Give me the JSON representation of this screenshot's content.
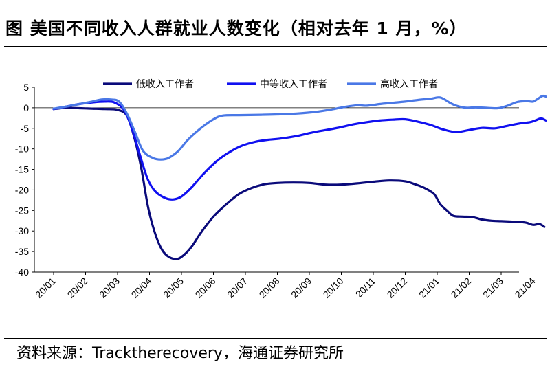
{
  "title": "图  美国不同收入人群就业人数变化（相对去年 1 月，%）",
  "source": "资料来源：Tracktherecovery，海通证券研究所",
  "chart_data": {
    "type": "line",
    "title": "美国不同收入人群就业人数变化（相对去年 1 月，%）",
    "ylim": [
      -40,
      5
    ],
    "yticks": [
      5,
      0,
      -5,
      -10,
      -15,
      -20,
      -25,
      -30,
      -35,
      -40
    ],
    "xlim": [
      0,
      15.4
    ],
    "x_tick_labels": [
      "20/01",
      "20/02",
      "20/03",
      "20/04",
      "20/05",
      "20/06",
      "20/07",
      "20/08",
      "20/09",
      "20/10",
      "20/11",
      "20/12",
      "21/01",
      "21/02",
      "21/03",
      "21/04"
    ],
    "legend_position": "top",
    "series": [
      {
        "name": "低收入工作者",
        "color": "#0a0a7a",
        "points": [
          [
            0,
            -0.3
          ],
          [
            0.4,
            0
          ],
          [
            0.8,
            -0.1
          ],
          [
            1.2,
            -0.2
          ],
          [
            1.6,
            -0.3
          ],
          [
            2.0,
            -0.5
          ],
          [
            2.3,
            -2
          ],
          [
            2.55,
            -8
          ],
          [
            2.75,
            -15
          ],
          [
            2.95,
            -24
          ],
          [
            3.15,
            -30
          ],
          [
            3.35,
            -34
          ],
          [
            3.55,
            -36
          ],
          [
            3.8,
            -36.8
          ],
          [
            4.0,
            -36.3
          ],
          [
            4.3,
            -34
          ],
          [
            4.6,
            -30.5
          ],
          [
            5.0,
            -26.5
          ],
          [
            5.4,
            -23.5
          ],
          [
            5.8,
            -21
          ],
          [
            6.2,
            -19.5
          ],
          [
            6.6,
            -18.6
          ],
          [
            7.0,
            -18.3
          ],
          [
            7.5,
            -18.2
          ],
          [
            8.0,
            -18.3
          ],
          [
            8.5,
            -18.7
          ],
          [
            9.0,
            -18.7
          ],
          [
            9.5,
            -18.4
          ],
          [
            10.0,
            -18.0
          ],
          [
            10.5,
            -17.7
          ],
          [
            11.0,
            -17.9
          ],
          [
            11.3,
            -18.6
          ],
          [
            11.6,
            -19.5
          ],
          [
            11.9,
            -21
          ],
          [
            12.1,
            -23.5
          ],
          [
            12.3,
            -25
          ],
          [
            12.5,
            -26.3
          ],
          [
            12.8,
            -26.5
          ],
          [
            13.1,
            -26.6
          ],
          [
            13.4,
            -27.2
          ],
          [
            13.7,
            -27.5
          ],
          [
            14.0,
            -27.6
          ],
          [
            14.3,
            -27.7
          ],
          [
            14.6,
            -27.8
          ],
          [
            14.8,
            -28.0
          ],
          [
            15.0,
            -28.5
          ],
          [
            15.2,
            -28.3
          ],
          [
            15.35,
            -29.0
          ]
        ]
      },
      {
        "name": "中等收入工作者",
        "color": "#1010f0",
        "points": [
          [
            0,
            -0.3
          ],
          [
            0.4,
            0.3
          ],
          [
            0.8,
            0.9
          ],
          [
            1.2,
            1.3
          ],
          [
            1.6,
            1.5
          ],
          [
            1.9,
            1.3
          ],
          [
            2.2,
            -0.5
          ],
          [
            2.45,
            -5
          ],
          [
            2.7,
            -11.5
          ],
          [
            2.95,
            -17.5
          ],
          [
            3.2,
            -20.5
          ],
          [
            3.5,
            -22.0
          ],
          [
            3.75,
            -22.3
          ],
          [
            4.0,
            -21.6
          ],
          [
            4.3,
            -19.5
          ],
          [
            4.7,
            -16
          ],
          [
            5.1,
            -13
          ],
          [
            5.5,
            -10.8
          ],
          [
            5.9,
            -9.2
          ],
          [
            6.3,
            -8.3
          ],
          [
            6.7,
            -7.8
          ],
          [
            7.1,
            -7.5
          ],
          [
            7.6,
            -6.9
          ],
          [
            8.1,
            -6.0
          ],
          [
            8.6,
            -5.3
          ],
          [
            9.0,
            -4.7
          ],
          [
            9.4,
            -4.0
          ],
          [
            9.8,
            -3.5
          ],
          [
            10.2,
            -3.1
          ],
          [
            10.6,
            -2.9
          ],
          [
            11.0,
            -2.8
          ],
          [
            11.4,
            -3.4
          ],
          [
            11.8,
            -4.2
          ],
          [
            12.2,
            -5.3
          ],
          [
            12.6,
            -5.9
          ],
          [
            13.0,
            -5.4
          ],
          [
            13.4,
            -4.9
          ],
          [
            13.8,
            -5.0
          ],
          [
            14.2,
            -4.4
          ],
          [
            14.6,
            -3.8
          ],
          [
            14.9,
            -3.5
          ],
          [
            15.1,
            -3.0
          ],
          [
            15.25,
            -2.6
          ],
          [
            15.4,
            -3.1
          ]
        ]
      },
      {
        "name": "高收入工作者",
        "color": "#4a78e6",
        "points": [
          [
            0,
            -0.2
          ],
          [
            0.4,
            0.3
          ],
          [
            0.8,
            0.9
          ],
          [
            1.2,
            1.5
          ],
          [
            1.5,
            2.0
          ],
          [
            1.8,
            2.0
          ],
          [
            2.05,
            1.5
          ],
          [
            2.3,
            -1.5
          ],
          [
            2.55,
            -6
          ],
          [
            2.8,
            -10.5
          ],
          [
            3.1,
            -12.2
          ],
          [
            3.35,
            -12.6
          ],
          [
            3.6,
            -12.2
          ],
          [
            3.9,
            -10.5
          ],
          [
            4.2,
            -7.8
          ],
          [
            4.6,
            -5
          ],
          [
            5.0,
            -2.8
          ],
          [
            5.3,
            -1.9
          ],
          [
            5.8,
            -1.8
          ],
          [
            6.5,
            -1.7
          ],
          [
            7.0,
            -1.6
          ],
          [
            7.6,
            -1.4
          ],
          [
            8.2,
            -1.0
          ],
          [
            8.7,
            -0.4
          ],
          [
            9.1,
            0.2
          ],
          [
            9.5,
            0.6
          ],
          [
            9.8,
            0.5
          ],
          [
            10.2,
            0.9
          ],
          [
            10.6,
            1.2
          ],
          [
            11.0,
            1.5
          ],
          [
            11.4,
            1.9
          ],
          [
            11.8,
            2.2
          ],
          [
            12.1,
            2.5
          ],
          [
            12.4,
            1.2
          ],
          [
            12.6,
            0.5
          ],
          [
            12.9,
            0.0
          ],
          [
            13.2,
            0.1
          ],
          [
            13.5,
            0.0
          ],
          [
            13.9,
            -0.1
          ],
          [
            14.2,
            0.5
          ],
          [
            14.5,
            1.4
          ],
          [
            14.8,
            1.6
          ],
          [
            15.0,
            1.5
          ],
          [
            15.15,
            2.2
          ],
          [
            15.3,
            2.9
          ],
          [
            15.4,
            2.7
          ]
        ]
      }
    ]
  }
}
